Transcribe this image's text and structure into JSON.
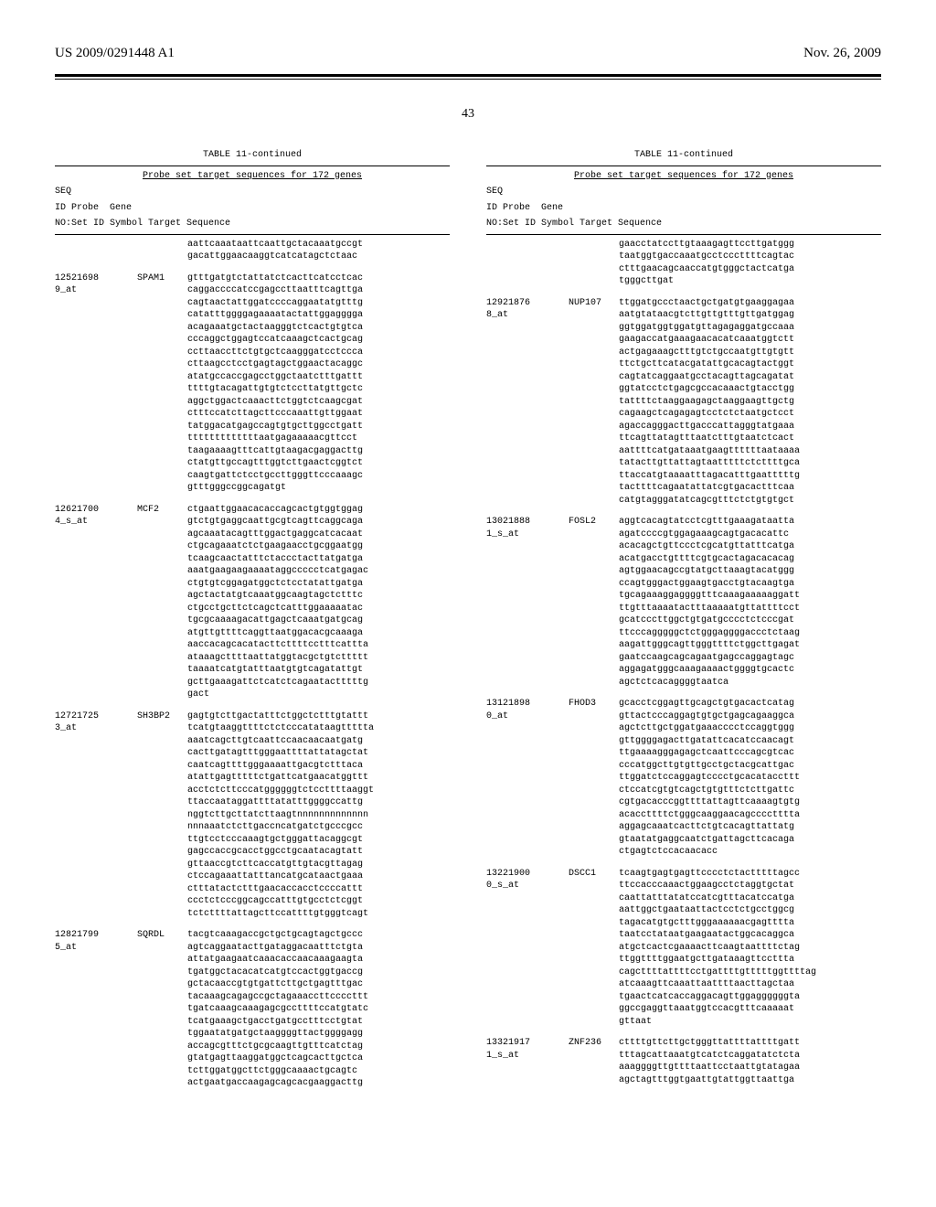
{
  "header": {
    "pub_number": "US 2009/0291448 A1",
    "date": "Nov. 26, 2009",
    "page": "43"
  },
  "table": {
    "title": "TABLE 11-continued",
    "subtitle": "Probe set target sequences for 172 genes",
    "header_line1": "SEQ",
    "header_line2": "ID Probe  Gene",
    "header_line3": "NO:Set ID Symbol Target Sequence"
  },
  "left_entries": [
    {
      "probe": "",
      "gene": "",
      "seq": "aattcaaataattcaattgctacaaatgccgt\ngacattggaacaaggtcatcatagctctaac"
    },
    {
      "probe": "12521698\n9_at",
      "gene": "SPAM1",
      "seq": "gtttgatgtctattatctcacttcatcctcac\ncaggaccccatccgagccttaatttcagttga\ncagtaactattggatccccaggaatatgtttg\ncatatttggggagaaaatactattggagggga\nacagaaatgctactaagggtctcactgtgtca\ncccaggctggagtccatcaaagctcactgcag\nccttaaccttctgtgctcaagggatcctccca\ncttaagcctcctgagtagctggaactacaggc\natatgccaccgagcctggctaatctttgattt\nttttgtacagattgtgtctccttatgttgctc\naggctggactcaaacttctggtctcaagcgat\nctttccatcttagcttcccaaattgttggaat\ntatggacatgagccagtgtgcttggcctgatt\ntttttttttttttaatgagaaaaacgttcct\ntaagaaaagtttcattgtaagacgaggacttg\nctatgttgccagtttggtcttgaactcggtct\ncaagtgattctcctgccttgggttcccaaagc\ngtttgggccggcagatgt"
    },
    {
      "probe": "12621700\n4_s_at",
      "gene": "MCF2",
      "seq": "ctgaattggaacacaccagcactgtggtggag\ngtctgtgaggcaattgcgtcagttcaggcaga\nagcaaatacagtttggactgaggcatcacaat\nctgcagaaatctctgaagaacctgcggaatgg\ntcaagcaactatttctaccctacttatgatga\naaatgaagaagaaaataggccccctcatgagac\nctgtgtcggagatggctctcctatattgatga\nagctactatgtcaaatggcaagtagctctttc\nctgcctgcttctcagctcatttggaaaaatac\ntgcgcaaaagacattgagctcaaatgatgcag\natgttgttttcaggttaatggacacgcaaaga\naaccacagcacatacttcttttcctttcattta\nataaagcttttaattatggtacgctgtcttttt\ntaaaatcatgtatttaatgtgtcagatattgt\ngcttgaaagattctcatctcagaatactttttg\ngact"
    },
    {
      "probe": "12721725\n3_at",
      "gene": "SH3BP2",
      "seq": "gagtgtcttgactatttctggctctttgtattt\ntcatgtaaggttttctctcccatataagttttta\naaatcagcttgtcaattccaacaacaatgatg\ncacttgatagtttgggaattttattatagctat\ncaatcagttttgggaaaattgacgtctttaca\natattgagtttttctgattcatgaacatggttt\nacctctcttcccatggggggtctccttttaaggt\nttaccaataggattttatatttggggccattg\nnggtcttgcttatcttaagtnnnnnnnnnnnnn\nnnnaaatctcttgaccncatgatctgcccgcc\nttgtcctcccaaagtgctgggattacaggcgt\ngagccaccgcacctggcctgcaatacagtatt\ngttaaccgtcttcaccatgttgtacgttagag\nctccagaaattatttancatgcataactgaaa\nctttatactctttgaacaccacctccccattt\nccctctcccggcagccatttgtgcctctcggt\ntctcttttattagcttccattttgtgggtcagt"
    },
    {
      "probe": "12821799\n5_at",
      "gene": "SQRDL",
      "seq": "tacgtcaaagaccgctgctgcagtagctgccc\nagtcaggaatacttgataggacaatttctgta\nattatgaagaatcaaacaccaacaaagaagta\ntgatggctacacatcatgtccactggtgaccg\ngctacaaccgtgtgattcttgctgagtttgac\ntacaaagcagagccgctagaaaccttccccttt\ntgatcaaagcaaagagcgccttttccatgtatc\ntcatgaaagctgacctgatgcctttcctgtat\ntggaatatgatgctaaggggttactggggagg\naccagcgtttctgcgcaagttgtttcatctag\ngtatgagttaaggatggctcagcacttgctca\ntcttggatggcttctgggcaaaactgcagtc\nactgaatgaccaagagcagcacgaaggacttg"
    }
  ],
  "right_entries": [
    {
      "probe": "",
      "gene": "",
      "seq": "gaacctatccttgtaaagagttccttgatggg\ntaatggtgaccaaatgcctcccttttcagtac\nctttgaacagcaaccatgtgggctactcatga\ntgggcttgat"
    },
    {
      "probe": "12921876\n8_at",
      "gene": "NUP107",
      "seq": "ttggatgccctaactgctgatgtgaaggagaa\naatgtataacgtcttgttgtttgttgatggag\nggtggatggtggatgttagagaggatgccaaa\ngaagaccatgaaagaacacatcaaatggtctt\nactgagaaagctttgtctgccaatgttgtgtt\nttctgcttcatacgatattgcacagtactggt\ncagtatcaggaatgcctacagttagcagatat\nggtatcctctgagcgccacaaactgtacctgg\ntattttctaaggaagagctaaggaagttgctg\ncagaagctcagagagtcctctctaatgctcct\nagaccagggacttgacccattagggtatgaaa\nttcagttatagtttaatctttgtaatctcact\naattttcatgataaatgaagttttttaataaaa\ntatacttgttattagtaatttttctcttttgca\nttaccatgtaaaatttagacatttgaatttttg\ntacttttcagaatattatcgtgacactttcaa\ncatgtagggatatcagcgtttctctgtgtgct"
    },
    {
      "probe": "13021888\n1_s_at",
      "gene": "FOSL2",
      "seq": "aggtcacagtatcctcgtttgaaagataatta\nagatccccgtggagaaagcagtgacacattc\nacacagctgttccctcgcatgttatttcatga\nacatgacctgttttcgtgcactagacacacag\nagtggaacagccgtatgcttaaagtacatggg\nccagtgggactggaagtgacctgtacaagtga\ntgcagaaaggaggggtttcaaagaaaaaggatt\nttgtttaaaatactttaaaaatgttattttcct\ngcatcccttggctgtgatgcccctctcccgat\nttcccagggggctctgggaggggaccctctaag\naagattgggcagttgggttttctggcttgagat\ngaatccaagcagcagaatgagccaggagtagc\naggagatgggcaaagaaaactggggtgcactc\nagctctcacaggggtaatca"
    },
    {
      "probe": "13121898\n0_at",
      "gene": "FHOD3",
      "seq": "gcacctcggagttgcagctgtgacactcatag\ngttactcccaggagtgtgctgagcagaaggca\nagctcttgctggatgaaacccctccaggtggg\ngttggggagacttgatattcacatccaacagt\nttgaaaagggagagctcaattcccagcgtcac\ncccatggcttgtgttgcctgctacgcattgac\nttggatctccaggagtcccctgcacataccttt\nctccatcgtgtcagctgtgtttctcttgattc\ncgtgacacccggttttattagttcaaaagtgtg\nacaccttttctgggcaaggaacagcccctttta\naggagcaaatcacttctgtcacagttattatg\ngtaatatgaggcaatctgattagcttcacaga\nctgagtctccacaacacc"
    },
    {
      "probe": "13221900\n0_s_at",
      "gene": "DSCC1",
      "seq": "tcaagtgagtgagttcccctctactttttagcc\nttccacccaaactggaagcctctaggtgctat\ncaattatttatatccatcgtttacatccatga\naattggctgaataattactcctctgcctggcg\ntagacatgtgctttgggaaaaaacgagtttta\ntaatcctataatgaagaatactggcacaggca\natgctcactcgaaaacttcaagtaattttctag\nttggttttggaatgcttgataaagttccttta\ncagcttttattttcctgattttgtttttggttttag\natcaaagttcaaattaattttaacttagctaa\ntgaactcatcaccaggacagttggaggggggta\nggccgaggttaaatggtccacgtttcaaaaat\ngttaat"
    },
    {
      "probe": "13321917\n1_s_at",
      "gene": "ZNF236",
      "seq": "cttttgttcttgctgggttattttattttgatt\ntttagcattaaatgtcatctcaggatatctcta\naaaggggttgttttaattcctaattgtatagaa\nagctagtttggtgaattgtattggttaattga"
    }
  ]
}
